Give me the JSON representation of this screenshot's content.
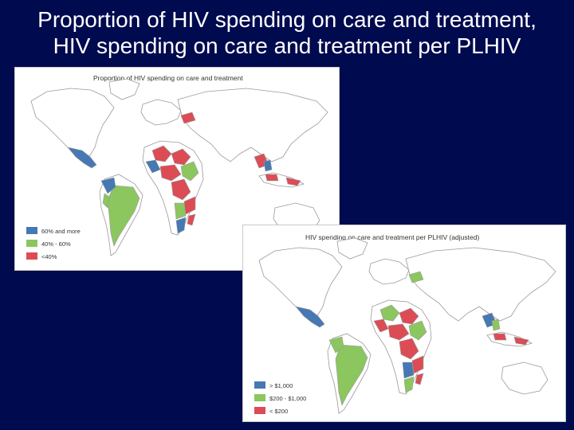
{
  "slide": {
    "title_line1": "Proportion of HIV spending on care and treatment,",
    "title_line2": "HIV spending on care and treatment per PLHIV"
  },
  "colors": {
    "background": "#000a4e",
    "high": "#4678b4",
    "medium": "#8cc65f",
    "low": "#dc4c55",
    "no_data": "#ffffff",
    "border": "#9a9a9a"
  },
  "map1": {
    "title": "Proportion of HIV spending on care and treatment",
    "legend": [
      {
        "label": "60% and more",
        "color": "#4678b4"
      },
      {
        "label": "40% - 60%",
        "color": "#8cc65f"
      },
      {
        "label": "<40%",
        "color": "#dc4c55"
      }
    ]
  },
  "map2": {
    "title": "HIV spending on care and treatment per PLHIV (adjusted)",
    "legend": [
      {
        "label": "> $1,000",
        "color": "#4678b4"
      },
      {
        "label": "$200 - $1,000",
        "color": "#8cc65f"
      },
      {
        "label": "< $200",
        "color": "#dc4c55"
      }
    ]
  }
}
